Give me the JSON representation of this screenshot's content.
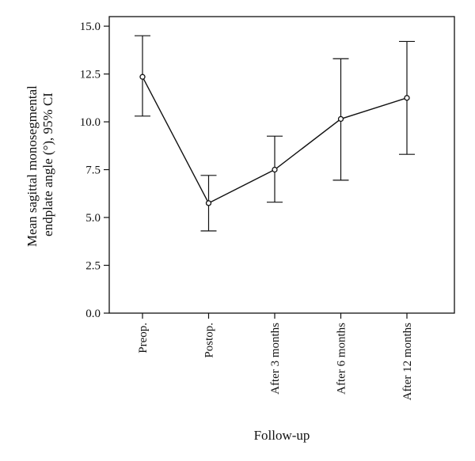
{
  "chart_data": {
    "type": "line",
    "title": "",
    "xlabel": "Follow-up",
    "ylabel": "Mean sagittal monosegmental endplate angle (°), 95% CI",
    "ylabel_lines": [
      "Mean sagittal monosegmental",
      "endplate angle (°), 95% CI"
    ],
    "ylim": [
      0,
      15.5
    ],
    "yticks": [
      0.0,
      2.5,
      5.0,
      7.5,
      10.0,
      12.5,
      15.0
    ],
    "ytick_labels": [
      "0.0",
      "2.5",
      "5.0",
      "7.5",
      "10.0",
      "12.5",
      "15.0"
    ],
    "categories": [
      "Preop.",
      "Postop.",
      "After 3 months",
      "After 6 months",
      "After 12 months"
    ],
    "series": [
      {
        "values": [
          12.35,
          5.75,
          7.5,
          10.15,
          11.25
        ],
        "ci_lower": [
          10.3,
          4.3,
          5.8,
          6.95,
          8.3
        ],
        "ci_upper": [
          14.5,
          7.2,
          9.25,
          13.3,
          14.2
        ]
      }
    ],
    "marker": "open-circle",
    "error_bars": "95% CI",
    "grid": false,
    "legend": "none",
    "colors": {
      "line": "#111111",
      "axis": "#111111",
      "background": "#ffffff"
    }
  }
}
